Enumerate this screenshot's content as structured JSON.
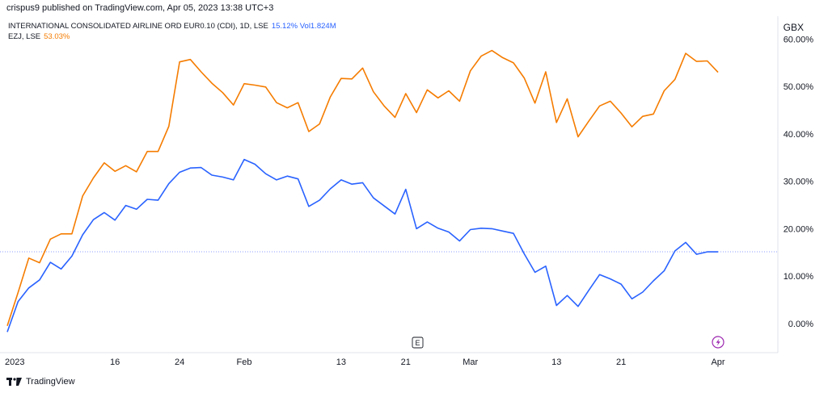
{
  "header": {
    "published": "crispus9 published on TradingView.com, Apr 05, 2023 13:38 UTC+3"
  },
  "legend": {
    "series1_label": "INTERNATIONAL CONSOLIDATED AIRLINE ORD EUR0.10 (CDI), 1D, LSE",
    "series1_value": "15.12%",
    "series1_vol": "Vol1.824M",
    "series2_label": "EZJ, LSE",
    "series2_value": "53.03%"
  },
  "currency": "GBX",
  "footer": {
    "brand": "TradingView"
  },
  "markers": {
    "earnings": "E",
    "dividend_icon": "lightning-icon"
  },
  "colors": {
    "ezj": "#f57c00",
    "iag": "#2962ff",
    "baseline": "#8c9eff"
  },
  "chart_data": {
    "type": "line",
    "ylim": [
      -5,
      61
    ],
    "yticks": [
      {
        "v": 60,
        "label": "60.00%"
      },
      {
        "v": 50,
        "label": "50.00%"
      },
      {
        "v": 40,
        "label": "40.00%"
      },
      {
        "v": 30,
        "label": "30.00%"
      },
      {
        "v": 20,
        "label": "20.00%"
      },
      {
        "v": 10,
        "label": "10.00%"
      },
      {
        "v": 0,
        "label": "0.00%"
      }
    ],
    "xticks": [
      {
        "i": 0,
        "label": "2023"
      },
      {
        "i": 10,
        "label": "16"
      },
      {
        "i": 16,
        "label": "24"
      },
      {
        "i": 22,
        "label": "Feb"
      },
      {
        "i": 31,
        "label": "13"
      },
      {
        "i": 37,
        "label": "21"
      },
      {
        "i": 43,
        "label": "Mar"
      },
      {
        "i": 51,
        "label": "13"
      },
      {
        "i": 57,
        "label": "21"
      },
      {
        "i": 66,
        "label": "Apr"
      }
    ],
    "baseline_value": 15.12,
    "series": [
      {
        "name": "EZJ, LSE",
        "values": [
          -0.5,
          6.5,
          13.8,
          12.8,
          17.8,
          18.9,
          18.9,
          26.9,
          30.7,
          33.9,
          32.1,
          33.3,
          32.0,
          36.3,
          36.3,
          41.6,
          55.2,
          55.7,
          53.1,
          50.7,
          48.7,
          46.1,
          50.6,
          50.3,
          49.9,
          46.6,
          45.5,
          46.6,
          40.5,
          42.1,
          47.8,
          51.7,
          51.6,
          53.9,
          48.9,
          45.9,
          43.5,
          48.5,
          44.5,
          49.3,
          47.6,
          49.1,
          46.9,
          53.3,
          56.4,
          57.6,
          56.1,
          55.0,
          51.8,
          46.5,
          53.1,
          42.4,
          47.4,
          39.4,
          42.7,
          45.9,
          46.9,
          44.4,
          41.5,
          43.7,
          44.2,
          49.1,
          51.5,
          57.0,
          55.3,
          55.4,
          53.0
        ]
      },
      {
        "name": "INTERNATIONAL CONSOLIDATED AIRLINE ORD EUR0.10 (CDI)",
        "values": [
          -1.8,
          4.6,
          7.5,
          9.2,
          12.9,
          11.5,
          14.2,
          18.7,
          21.9,
          23.4,
          21.8,
          24.9,
          24.1,
          26.2,
          26.0,
          29.5,
          31.9,
          32.8,
          32.9,
          31.3,
          30.9,
          30.3,
          34.6,
          33.6,
          31.6,
          30.3,
          31.1,
          30.5,
          24.7,
          26.0,
          28.4,
          30.3,
          29.4,
          29.7,
          26.5,
          24.8,
          23.1,
          28.3,
          20.0,
          21.4,
          20.1,
          19.3,
          17.4,
          19.8,
          20.1,
          20.0,
          19.5,
          19.0,
          14.7,
          10.8,
          12.1,
          3.8,
          5.9,
          3.6,
          7.0,
          10.3,
          9.4,
          8.3,
          5.2,
          6.6,
          9.0,
          11.1,
          15.3,
          17.1,
          14.6,
          15.1,
          15.1
        ]
      }
    ]
  }
}
